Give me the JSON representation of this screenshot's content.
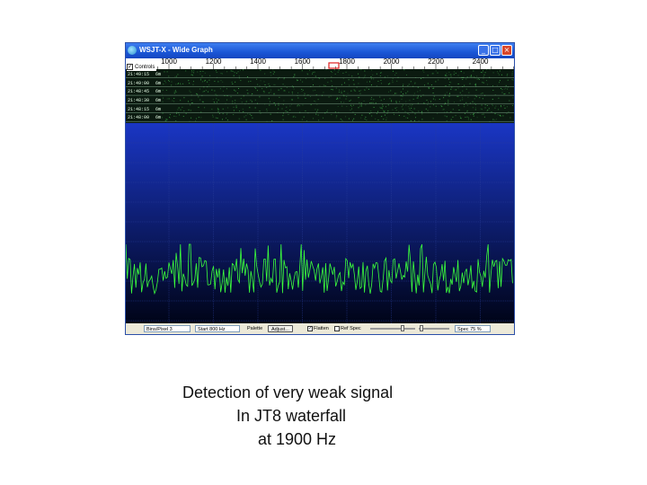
{
  "window": {
    "title": "WSJT-X - Wide Graph",
    "icon": "wsjt-app-icon",
    "buttons": {
      "minimize": "_",
      "maximize": "□",
      "close": "×"
    }
  },
  "frequency_scale": {
    "unit": "Hz",
    "labels": [
      "1000",
      "1200",
      "1400",
      "1600",
      "1800",
      "2000",
      "2200",
      "2400"
    ],
    "marker_color": "#e02020"
  },
  "controls_checkbox": {
    "label": "Controls",
    "checked": true,
    "mark": "✓"
  },
  "timestamps": [
    {
      "time": "21:49:15",
      "band": "6m"
    },
    {
      "time": "21:49:00",
      "band": "6m"
    },
    {
      "time": "21:48:45",
      "band": "6m"
    },
    {
      "time": "21:48:30",
      "band": "6m"
    },
    {
      "time": "21:48:15",
      "band": "6m"
    },
    {
      "time": "21:48:00",
      "band": "6m"
    }
  ],
  "colors": {
    "waterfall_bg": "#0b1a10",
    "waterfall_noise": "#3fae4a",
    "spectrum_top": "#1a36c4",
    "spectrum_bottom": "#000418",
    "trace": "#3cff3c",
    "grid": "#2a3f9a"
  },
  "toolbar": {
    "bins_per_pixel": "Bins/Pixel  3",
    "start": "Start 800 Hz",
    "palette_label": "Palette",
    "adjust_button": "Adjust...",
    "flatten": {
      "label": "Flatten",
      "checked": true,
      "mark": "✓"
    },
    "ref_spec": {
      "label": "Ref Spec",
      "checked": false
    },
    "spec": "Spec 75 %"
  },
  "caption": {
    "line1": "Detection of very weak signal",
    "line2": "In JT8 waterfall",
    "line3": "at 1900 Hz"
  }
}
